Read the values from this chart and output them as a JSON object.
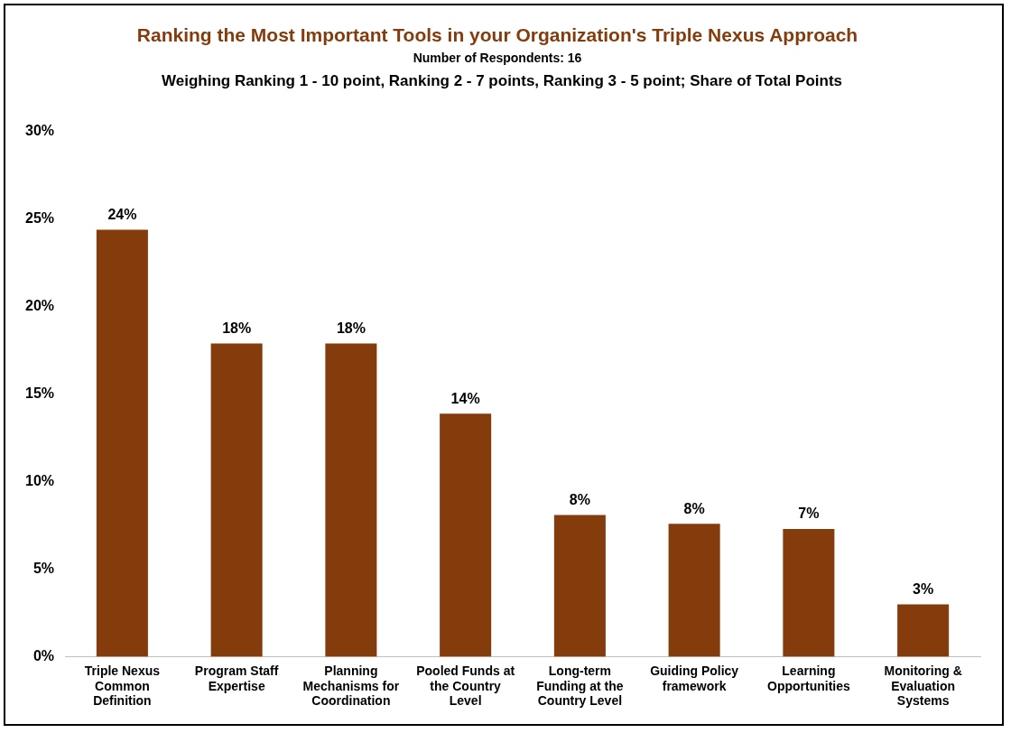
{
  "chart_data": {
    "type": "bar",
    "title": "Ranking the Most Important Tools in your Organization's Triple Nexus Approach",
    "subtitle": "Number of Respondents: 16",
    "annotations": [
      "Weighing Ranking 1 - 10 point, Ranking 2 - 7 points, Ranking 3 - 5 point; Share of Total Points"
    ],
    "categories": [
      "Triple Nexus Common Definition",
      "Program Staff Expertise",
      "Planning Mechanisms for Coordination",
      "Pooled Funds at the Country Level",
      "Long-term Funding at the Country Level",
      "Guiding Policy framework",
      "Learning Opportunities",
      "Monitoring & Evaluation Systems"
    ],
    "values": [
      24.4,
      17.9,
      17.9,
      13.9,
      8.1,
      7.6,
      7.3,
      3.0
    ],
    "value_labels": [
      "24%",
      "18%",
      "18%",
      "14%",
      "8%",
      "8%",
      "7%",
      "3%"
    ],
    "color": "#843c0c",
    "ylim": [
      0,
      30
    ],
    "yticks": [
      {
        "value": 0,
        "label": "0%"
      },
      {
        "value": 5,
        "label": "5%"
      },
      {
        "value": 10,
        "label": "10%"
      },
      {
        "value": 15,
        "label": "15%"
      },
      {
        "value": 20,
        "label": "20%"
      },
      {
        "value": 25,
        "label": "25%"
      },
      {
        "value": 30,
        "label": "30%"
      }
    ],
    "grid": false,
    "legend": false
  }
}
